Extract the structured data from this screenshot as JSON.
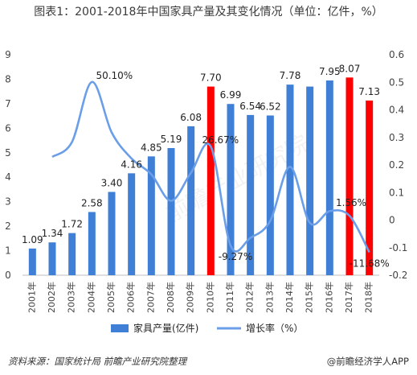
{
  "title": "图表1：2001-2018年中国家具产量及其变化情况（单位：亿件，%）",
  "source": "资料来源：国家统计局  前瞻产业研究院整理",
  "brand": "@前瞻经济学人APP",
  "watermark": "前瞻产业研究院",
  "chart_data": {
    "type": "bar+line",
    "categories": [
      "2001年",
      "2002年",
      "2003年",
      "2004年",
      "2005年",
      "2006年",
      "2007年",
      "2008年",
      "2009年",
      "2010年",
      "2011年",
      "2012年",
      "2013年",
      "2014年",
      "2015年",
      "2016年",
      "2017年",
      "2018年"
    ],
    "series": [
      {
        "name": "家具产量(亿件)",
        "type": "bar",
        "axis": "left",
        "color": "#3f7fd6",
        "highlight_color": "#ff0000",
        "highlight_indices": [
          9,
          16,
          17
        ],
        "values": [
          1.09,
          1.34,
          1.72,
          2.58,
          3.4,
          4.16,
          4.85,
          5.19,
          6.08,
          7.7,
          6.99,
          6.54,
          6.52,
          7.78,
          7.7,
          7.95,
          8.07,
          7.13
        ],
        "labels": [
          "1.09",
          "1.34",
          "1.72",
          "2.58",
          "3.40",
          "4.16",
          "4.85",
          "5.19",
          "6.08",
          "7.70",
          "6.99",
          "6.54",
          "6.52",
          "7.78",
          "",
          "7.95",
          "8.07",
          "7.13"
        ]
      },
      {
        "name": "增长率（%）",
        "type": "line",
        "axis": "right",
        "color": "#6a9ee8",
        "values": [
          null,
          0.2294,
          0.2836,
          0.501,
          0.3178,
          0.2235,
          0.1659,
          0.0701,
          0.1715,
          0.2667,
          -0.0927,
          -0.0644,
          -0.0031,
          0.1932,
          -0.0103,
          0.0325,
          0.0156,
          -0.1168
        ],
        "labels": [
          "",
          "",
          "",
          "50.10%",
          "",
          "",
          "",
          "",
          "",
          "26.67%",
          "-9.27%",
          "",
          "",
          "",
          "",
          "",
          "1.56%",
          "-11.68%"
        ]
      }
    ],
    "y_left": {
      "min": 0,
      "max": 9,
      "ticks": [
        "0",
        "1",
        "2",
        "3",
        "4",
        "5",
        "6",
        "7",
        "8",
        "9"
      ]
    },
    "y_right": {
      "min": -0.2,
      "max": 0.6,
      "ticks": [
        "-0.2",
        "-0.1",
        "0",
        "0.1",
        "0.2",
        "0.3",
        "0.4",
        "0.5",
        "0.6"
      ]
    },
    "legend": {
      "position": "bottom",
      "items": [
        "家具产量(亿件)",
        "增长率（%）"
      ]
    }
  }
}
